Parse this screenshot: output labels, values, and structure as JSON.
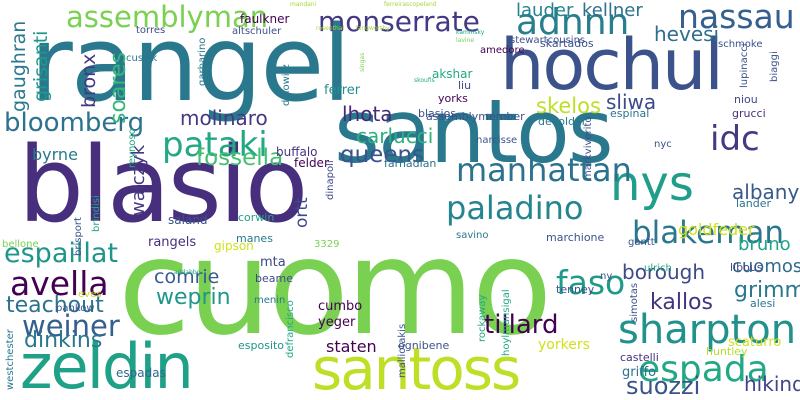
{
  "word_cloud": {
    "background": "#ffffff",
    "words": [
      {
        "text": "cuomo",
        "color": "#7ad151"
      },
      {
        "text": "rangel",
        "color": "#2a788e"
      },
      {
        "text": "santos",
        "color": "#2a788e"
      },
      {
        "text": "blasio",
        "color": "#472f7d"
      },
      {
        "text": "hochul",
        "color": "#3b528b"
      },
      {
        "text": "zeldin",
        "color": "#1fa187"
      },
      {
        "text": "santoss",
        "color": "#bddf26"
      },
      {
        "text": "nys",
        "color": "#1f9e89"
      },
      {
        "text": "sharpton",
        "color": "#21918c"
      },
      {
        "text": "espada",
        "color": "#22a884"
      },
      {
        "text": "assemblyman",
        "color": "#7ad151"
      },
      {
        "text": "monserrate",
        "color": "#443983"
      },
      {
        "text": "nassau",
        "color": "#355f8d"
      },
      {
        "text": "adnnn",
        "color": "#277f8e"
      },
      {
        "text": "paladino",
        "color": "#25858e"
      },
      {
        "text": "manhattan",
        "color": "#2c728e"
      },
      {
        "text": "blakeman",
        "color": "#2a788e"
      },
      {
        "text": "weiner",
        "color": "#355f8d"
      },
      {
        "text": "avella",
        "color": "#440154"
      },
      {
        "text": "pataki",
        "color": "#22a884"
      },
      {
        "text": "bloomberg",
        "color": "#2c728e"
      },
      {
        "text": "espaillat",
        "color": "#1f968b"
      },
      {
        "text": "faso",
        "color": "#1f9a8a"
      },
      {
        "text": "idc",
        "color": "#443983"
      },
      {
        "text": "albany",
        "color": "#38598c"
      },
      {
        "text": "suozzi",
        "color": "#3b528b"
      },
      {
        "text": "hikind",
        "color": "#414487"
      },
      {
        "text": "grimm",
        "color": "#2a788e"
      },
      {
        "text": "kallos",
        "color": "#46337f"
      },
      {
        "text": "cuomos",
        "color": "#2f6c8e"
      },
      {
        "text": "borough",
        "color": "#3e4989"
      },
      {
        "text": "tillard",
        "color": "#440154"
      },
      {
        "text": "dinkins",
        "color": "#2a788e"
      },
      {
        "text": "teachout",
        "color": "#2c728e"
      },
      {
        "text": "weprin",
        "color": "#1f968b"
      },
      {
        "text": "comrie",
        "color": "#375a8c"
      },
      {
        "text": "queens",
        "color": "#3b528b"
      },
      {
        "text": "fossella",
        "color": "#44bf70"
      },
      {
        "text": "carlucci",
        "color": "#2db27d"
      },
      {
        "text": "lhota",
        "color": "#482878"
      },
      {
        "text": "molinaro",
        "color": "#443983"
      },
      {
        "text": "skelos",
        "color": "#bddf26"
      },
      {
        "text": "sliwa",
        "color": "#3e4989"
      },
      {
        "text": "hevesi",
        "color": "#2e6f8e"
      },
      {
        "text": "lauder",
        "color": "#26828e"
      },
      {
        "text": "kellner",
        "color": "#2c728e"
      },
      {
        "text": "soares",
        "color": "#35b779"
      },
      {
        "text": "gaughran",
        "color": "#2a788e"
      },
      {
        "text": "grisanti",
        "color": "#1f988b"
      },
      {
        "text": "bronx",
        "color": "#453781"
      },
      {
        "text": "walczyk",
        "color": "#453781"
      },
      {
        "text": "byrne",
        "color": "#2a788e"
      },
      {
        "text": "ortt",
        "color": "#3e4989"
      },
      {
        "text": "bruno",
        "color": "#20a486"
      },
      {
        "text": "goldfeder",
        "color": "#d0e11c"
      },
      {
        "text": "staten",
        "color": "#440154"
      },
      {
        "text": "yorkers",
        "color": "#d0e11c"
      },
      {
        "text": "scaturro",
        "color": "#d0e11c"
      },
      {
        "text": "griffo",
        "color": "#2c728e"
      },
      {
        "text": "castelli",
        "color": "#46337f"
      },
      {
        "text": "huntley",
        "color": "#b5de2b"
      },
      {
        "text": "espadas",
        "color": "#31688e"
      },
      {
        "text": "esposito",
        "color": "#1f948c"
      },
      {
        "text": "ognibene",
        "color": "#3b528b"
      },
      {
        "text": "rangels",
        "color": "#472f7d"
      },
      {
        "text": "mta",
        "color": "#3e4989"
      },
      {
        "text": "beame",
        "color": "#3e4989"
      },
      {
        "text": "menin",
        "color": "#2a788e"
      },
      {
        "text": "yeger",
        "color": "#440154"
      },
      {
        "text": "cumbo",
        "color": "#440154"
      },
      {
        "text": "gipson",
        "color": "#d0e11c"
      },
      {
        "text": "saland",
        "color": "#3b528b"
      },
      {
        "text": "manes",
        "color": "#2a788e"
      },
      {
        "text": "corwin",
        "color": "#20a486"
      },
      {
        "text": "felder",
        "color": "#440154"
      },
      {
        "text": "buffalo",
        "color": "#46337f"
      },
      {
        "text": "farhadian",
        "color": "#2c728e"
      },
      {
        "text": "assemblymember",
        "color": "#3b528b"
      },
      {
        "text": "devolder",
        "color": "#2a788e"
      },
      {
        "text": "espinal",
        "color": "#2c728e"
      },
      {
        "text": "niou",
        "color": "#3e4989"
      },
      {
        "text": "grucci",
        "color": "#472f7d"
      },
      {
        "text": "ferrer",
        "color": "#21918c"
      },
      {
        "text": "blasios",
        "color": "#3b528b"
      },
      {
        "text": "liu",
        "color": "#3e4989"
      },
      {
        "text": "yorks",
        "color": "#440154"
      },
      {
        "text": "akshar",
        "color": "#22a884"
      },
      {
        "text": "faulkner",
        "color": "#440154"
      },
      {
        "text": "altschuler",
        "color": "#3b528b"
      },
      {
        "text": "torres",
        "color": "#3e4989"
      },
      {
        "text": "cusick",
        "color": "#2a788e"
      },
      {
        "text": "skartados",
        "color": "#3b528b"
      },
      {
        "text": "stewartcousins",
        "color": "#3b528b"
      },
      {
        "text": "amedore",
        "color": "#440154"
      },
      {
        "text": "schmoke",
        "color": "#3b528b"
      },
      {
        "text": "marchione",
        "color": "#3b528b"
      },
      {
        "text": "savino",
        "color": "#2a788e"
      },
      {
        "text": "gantt",
        "color": "#3b528b"
      },
      {
        "text": "libous",
        "color": "#414487"
      },
      {
        "text": "lander",
        "color": "#2c728e"
      },
      {
        "text": "alesi",
        "color": "#2a788e"
      },
      {
        "text": "tenney",
        "color": "#3b528b"
      },
      {
        "text": "ulrich",
        "color": "#22a884"
      },
      {
        "text": "ny",
        "color": "#3b528b"
      },
      {
        "text": "pankow",
        "color": "#3b528b"
      },
      {
        "text": "3329",
        "color": "#7ad151"
      },
      {
        "text": "nyc",
        "color": "#3b528b"
      },
      {
        "text": "narcisse",
        "color": "#3b528b"
      },
      {
        "text": "dinapoli",
        "color": "#3e4989"
      },
      {
        "text": "dinowitz",
        "color": "#2a788e"
      },
      {
        "text": "patakis",
        "color": "#2a788e"
      },
      {
        "text": "garbarino",
        "color": "#2a788e"
      },
      {
        "text": "reynoso",
        "color": "#22a884"
      },
      {
        "text": "brindisi",
        "color": "#22a884"
      },
      {
        "text": "brisport",
        "color": "#3b528b"
      },
      {
        "text": "defrancisco",
        "color": "#22a884"
      },
      {
        "text": "malliotakis",
        "color": "#3b528b"
      },
      {
        "text": "rockaway",
        "color": "#22a884"
      },
      {
        "text": "hoylmansigal",
        "color": "#22a884"
      },
      {
        "text": "markviverito",
        "color": "#3b528b"
      },
      {
        "text": "simotas",
        "color": "#3b528b"
      },
      {
        "text": "lupinacci",
        "color": "#3b528b"
      },
      {
        "text": "biaggi",
        "color": "#3b528b"
      },
      {
        "text": "bellone",
        "color": "#7ad151"
      },
      {
        "text": "eves",
        "color": "#bddf26"
      },
      {
        "text": "westchester",
        "color": "#2a788e"
      },
      {
        "text": "rosenthal",
        "color": "#9fda3a"
      },
      {
        "text": "langworthy",
        "color": "#9fda3a"
      },
      {
        "text": "singas",
        "color": "#7ad151"
      },
      {
        "text": "skoufis",
        "color": "#22a884"
      },
      {
        "text": "kaminsky",
        "color": "#22a884"
      },
      {
        "text": "lavine",
        "color": "#7ad151"
      },
      {
        "text": "addabbo",
        "color": "#22a884"
      },
      {
        "text": "ferreirascopeland",
        "color": "#9fda3a"
      },
      {
        "text": "mandani",
        "color": "#9fda3a"
      }
    ]
  }
}
